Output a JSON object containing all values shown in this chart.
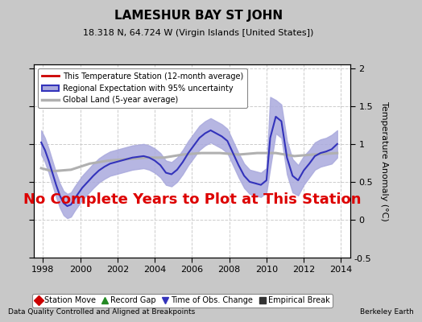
{
  "title": "LAMESHUR BAY ST JOHN",
  "subtitle": "18.318 N, 64.724 W (Virgin Islands [United States])",
  "ylabel": "Temperature Anomaly (°C)",
  "footer_left": "Data Quality Controlled and Aligned at Breakpoints",
  "footer_right": "Berkeley Earth",
  "xlim": [
    1997.5,
    2014.5
  ],
  "ylim": [
    -0.5,
    2.05
  ],
  "yticks_right": [
    0.0,
    0.5,
    1.0,
    1.5,
    2.0
  ],
  "yticks_left": [
    -0.5,
    0.0,
    0.5,
    1.0,
    1.5,
    2.0
  ],
  "xticks": [
    1998,
    2000,
    2002,
    2004,
    2006,
    2008,
    2010,
    2012,
    2014
  ],
  "background_color": "#c8c8c8",
  "plot_bg_color": "#ffffff",
  "regional_color": "#3333bb",
  "regional_fill_color": "#aaaadd",
  "global_color": "#b0b0b0",
  "station_color": "#cc0000",
  "no_data_text": "No Complete Years to Plot at This Station",
  "no_data_color": "#dd0000",
  "no_data_fontsize": 13,
  "legend1_entries": [
    {
      "label": "This Temperature Station (12-month average)",
      "color": "#cc0000",
      "lw": 2
    },
    {
      "label": "Regional Expectation with 95% uncertainty",
      "color": "#3333bb",
      "lw": 2
    },
    {
      "label": "Global Land (5-year average)",
      "color": "#b0b0b0",
      "lw": 2
    }
  ],
  "legend2_entries": [
    {
      "label": "Station Move",
      "marker": "D",
      "color": "#cc0000"
    },
    {
      "label": "Record Gap",
      "marker": "^",
      "color": "#228822"
    },
    {
      "label": "Time of Obs. Change",
      "marker": "v",
      "color": "#3333bb"
    },
    {
      "label": "Empirical Break",
      "marker": "s",
      "color": "#333333"
    }
  ],
  "regional_x": [
    1997.9,
    1998.1,
    1998.3,
    1998.5,
    1998.7,
    1998.9,
    1999.1,
    1999.3,
    1999.5,
    1999.7,
    1999.9,
    2000.1,
    2000.4,
    2000.7,
    2001.0,
    2001.3,
    2001.6,
    2001.9,
    2002.2,
    2002.5,
    2002.8,
    2003.1,
    2003.4,
    2003.7,
    2004.0,
    2004.3,
    2004.6,
    2004.9,
    2005.2,
    2005.5,
    2005.8,
    2006.1,
    2006.4,
    2006.7,
    2007.0,
    2007.3,
    2007.6,
    2007.9,
    2008.2,
    2008.5,
    2008.8,
    2009.1,
    2009.4,
    2009.7,
    2010.0,
    2010.2,
    2010.5,
    2010.8,
    2011.1,
    2011.4,
    2011.7,
    2012.0,
    2012.3,
    2012.6,
    2012.9,
    2013.2,
    2013.5,
    2013.8
  ],
  "regional_y": [
    1.02,
    0.92,
    0.78,
    0.62,
    0.46,
    0.32,
    0.22,
    0.18,
    0.2,
    0.28,
    0.35,
    0.42,
    0.5,
    0.58,
    0.65,
    0.7,
    0.74,
    0.76,
    0.78,
    0.8,
    0.82,
    0.83,
    0.84,
    0.82,
    0.78,
    0.72,
    0.62,
    0.6,
    0.66,
    0.76,
    0.88,
    0.98,
    1.08,
    1.14,
    1.18,
    1.14,
    1.1,
    1.04,
    0.88,
    0.72,
    0.58,
    0.5,
    0.48,
    0.46,
    0.52,
    1.08,
    1.36,
    1.3,
    0.82,
    0.58,
    0.52,
    0.65,
    0.74,
    0.84,
    0.88,
    0.9,
    0.93,
    1.0
  ],
  "regional_upper": [
    1.18,
    1.08,
    0.94,
    0.78,
    0.62,
    0.48,
    0.38,
    0.34,
    0.36,
    0.44,
    0.51,
    0.58,
    0.66,
    0.74,
    0.81,
    0.86,
    0.9,
    0.92,
    0.94,
    0.96,
    0.98,
    0.99,
    1.0,
    0.98,
    0.94,
    0.88,
    0.78,
    0.76,
    0.82,
    0.92,
    1.04,
    1.14,
    1.24,
    1.3,
    1.34,
    1.3,
    1.26,
    1.2,
    1.04,
    0.88,
    0.74,
    0.66,
    0.64,
    0.62,
    0.68,
    1.62,
    1.58,
    1.52,
    1.04,
    0.8,
    0.72,
    0.84,
    0.92,
    1.02,
    1.06,
    1.08,
    1.12,
    1.18
  ],
  "regional_lower": [
    0.86,
    0.76,
    0.62,
    0.46,
    0.3,
    0.16,
    0.06,
    0.02,
    0.04,
    0.12,
    0.19,
    0.26,
    0.34,
    0.42,
    0.49,
    0.54,
    0.58,
    0.6,
    0.62,
    0.64,
    0.66,
    0.67,
    0.68,
    0.66,
    0.62,
    0.56,
    0.46,
    0.44,
    0.5,
    0.6,
    0.72,
    0.82,
    0.92,
    0.98,
    1.02,
    0.98,
    0.94,
    0.88,
    0.72,
    0.56,
    0.42,
    0.34,
    0.32,
    0.3,
    0.36,
    0.68,
    1.14,
    1.08,
    0.6,
    0.36,
    0.32,
    0.46,
    0.56,
    0.66,
    0.7,
    0.72,
    0.74,
    0.82
  ],
  "global_x": [
    1997.9,
    1998.5,
    1999.5,
    2000.5,
    2001.5,
    2002.5,
    2003.5,
    2004.5,
    2005.5,
    2006.5,
    2007.5,
    2008.5,
    2009.5,
    2010.5,
    2011.5,
    2012.5,
    2013.8
  ],
  "global_y": [
    0.68,
    0.64,
    0.66,
    0.74,
    0.78,
    0.8,
    0.82,
    0.82,
    0.86,
    0.88,
    0.88,
    0.86,
    0.88,
    0.88,
    0.84,
    0.86,
    0.88
  ]
}
